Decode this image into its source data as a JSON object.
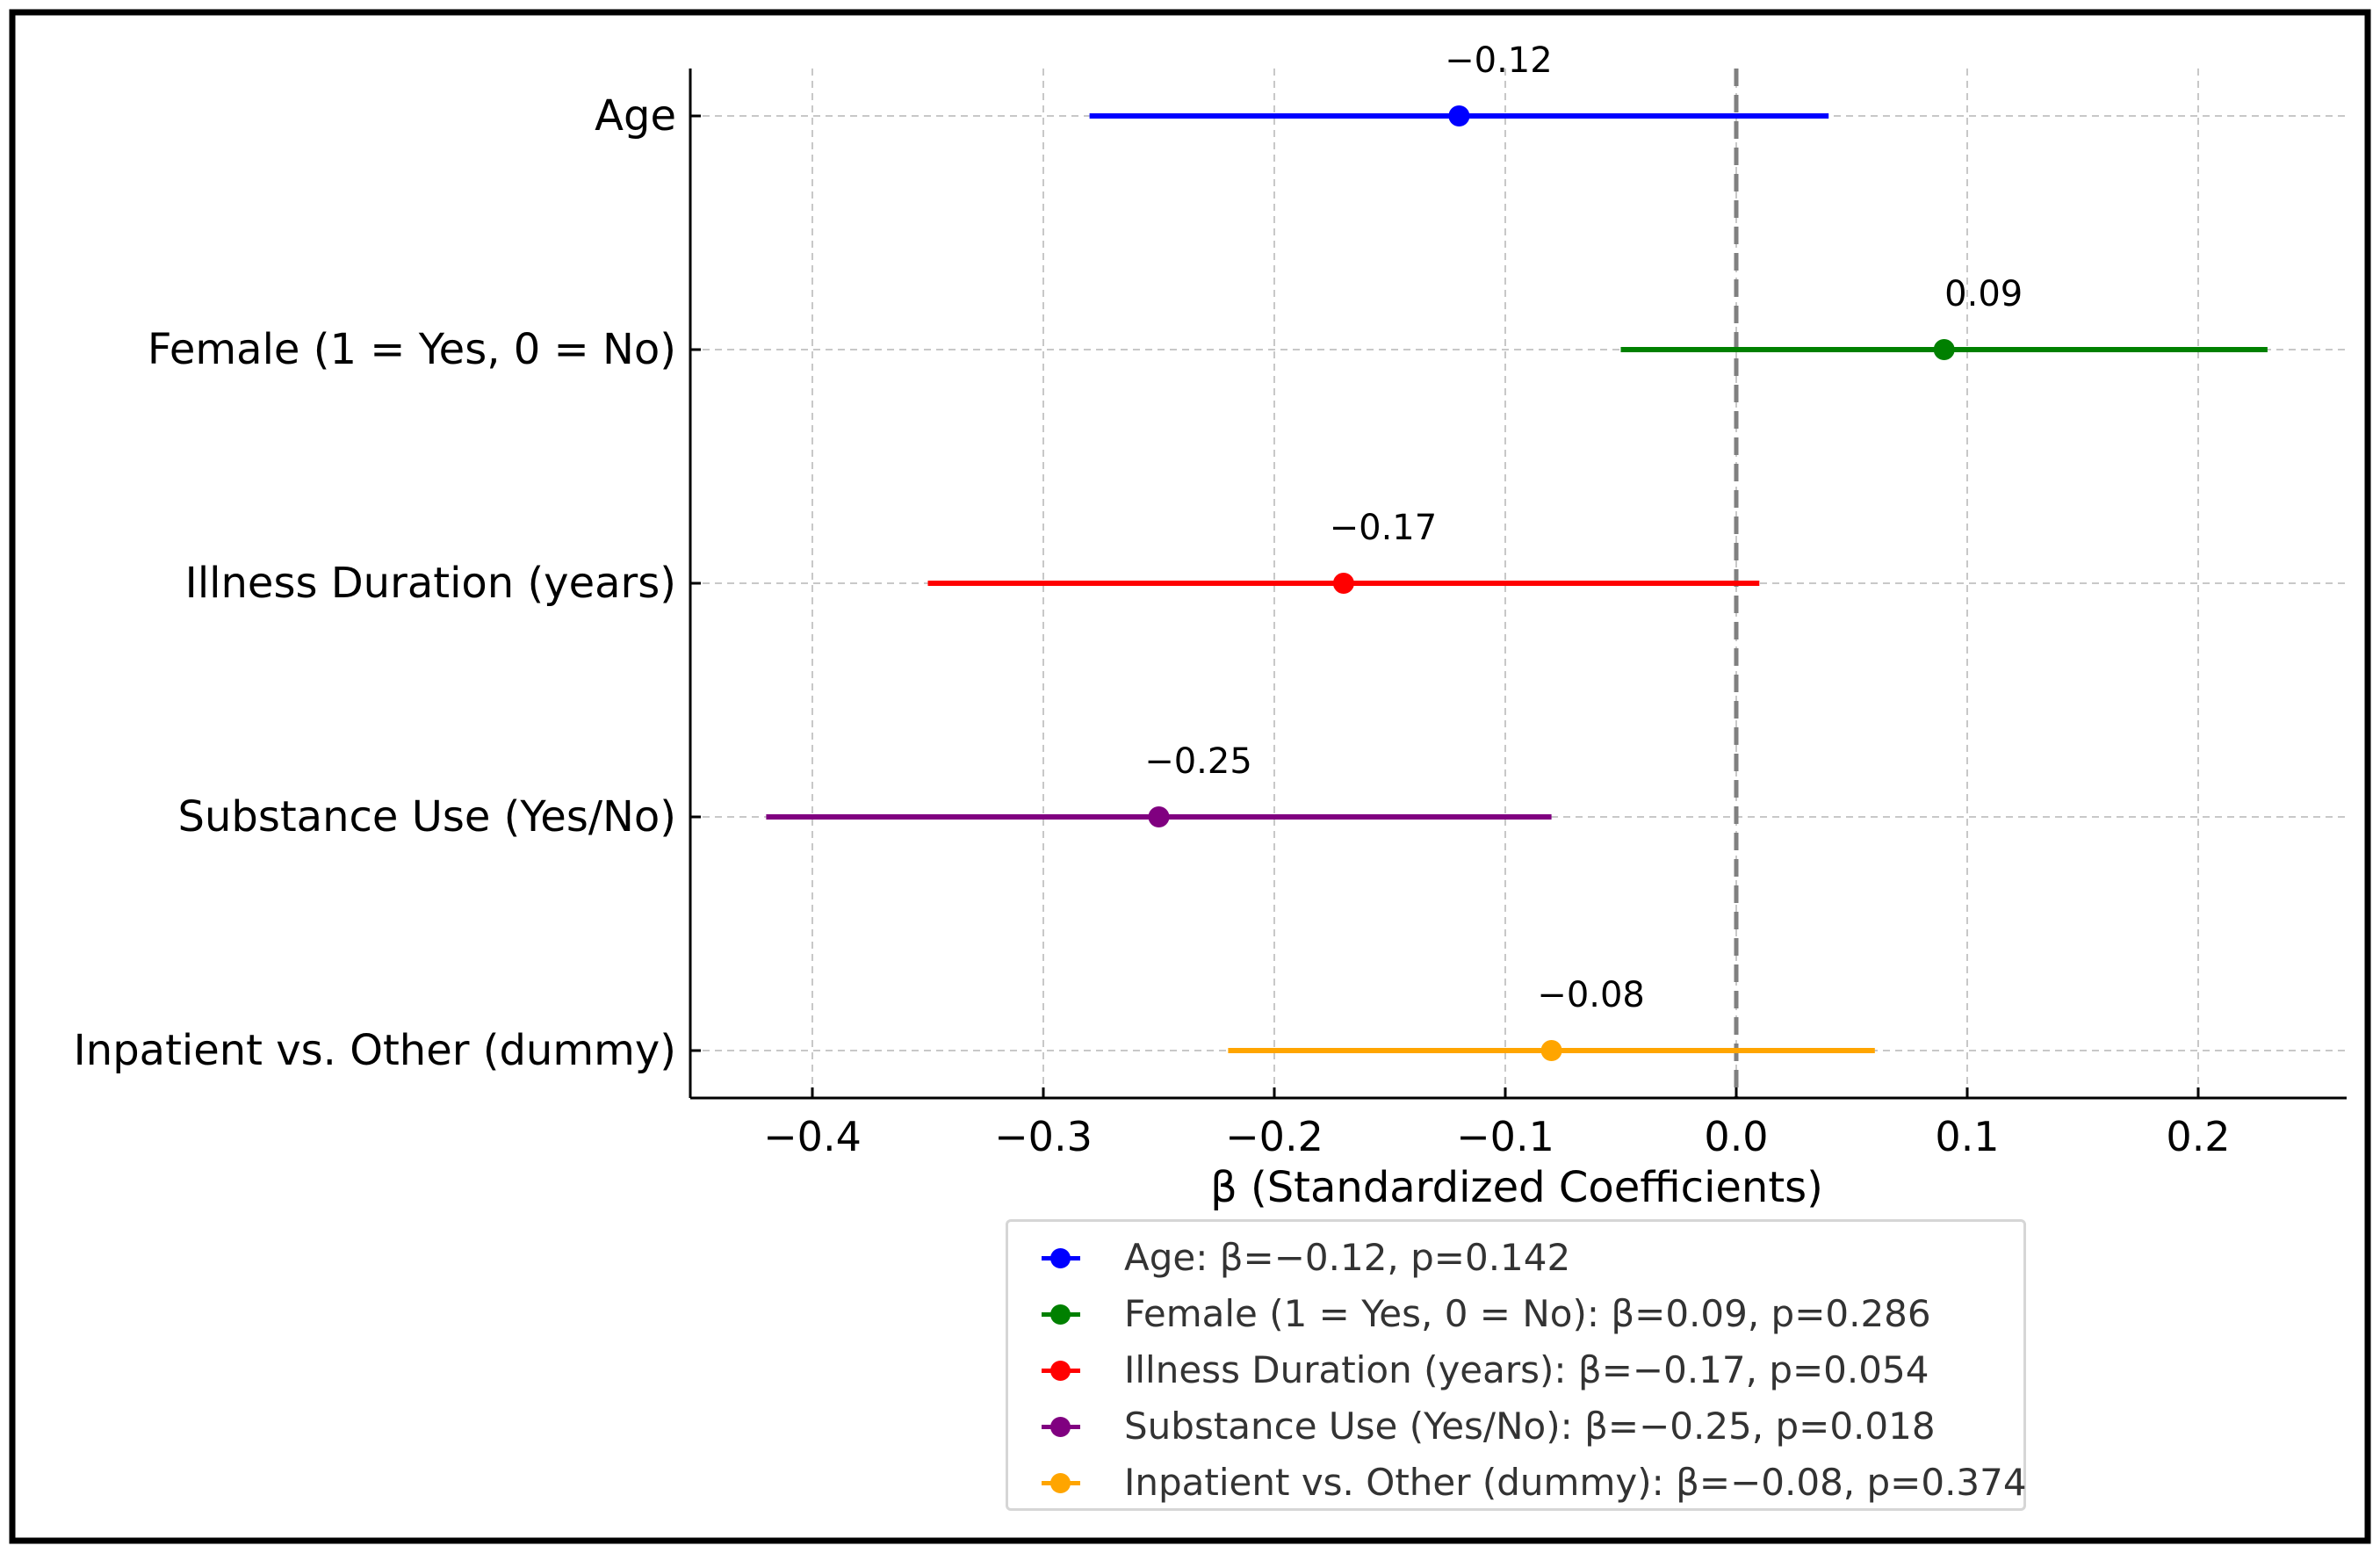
{
  "chart_data": {
    "type": "forest",
    "xlabel": "β (Standardized Coefficients)",
    "xlim": [
      -0.455,
      0.263
    ],
    "xticks": [
      -0.4,
      -0.3,
      -0.2,
      -0.1,
      0.0,
      0.1,
      0.2
    ],
    "xtick_labels": [
      "−0.4",
      "−0.3",
      "−0.2",
      "−0.1",
      "0.0",
      "0.1",
      "0.2"
    ],
    "reference_line": 0.0,
    "grid": true,
    "legend_position": "bottom-center",
    "rows": [
      {
        "label": "Age",
        "beta": -0.12,
        "ci": [
          -0.28,
          0.04
        ],
        "annotation": "−0.12",
        "color": "#0000ff",
        "legend": "Age: β=−0.12, p=0.142"
      },
      {
        "label": "Female (1 = Yes, 0 = No)",
        "beta": 0.09,
        "ci": [
          -0.05,
          0.23
        ],
        "annotation": "0.09",
        "color": "#008000",
        "legend": "Female (1 = Yes, 0 = No): β=0.09, p=0.286"
      },
      {
        "label": "Illness Duration (years)",
        "beta": -0.17,
        "ci": [
          -0.35,
          0.01
        ],
        "annotation": "−0.17",
        "color": "#ff0000",
        "legend": "Illness Duration (years): β=−0.17, p=0.054"
      },
      {
        "label": "Substance Use (Yes/No)",
        "beta": -0.25,
        "ci": [
          -0.42,
          -0.08
        ],
        "annotation": "−0.25",
        "color": "#800080",
        "legend": "Substance Use (Yes/No): β=−0.25, p=0.018"
      },
      {
        "label": "Inpatient vs. Other (dummy)",
        "beta": -0.08,
        "ci": [
          -0.22,
          0.06
        ],
        "annotation": "−0.08",
        "color": "#ffa500",
        "legend": "Inpatient vs. Other (dummy): β=−0.08, p=0.374"
      }
    ]
  }
}
